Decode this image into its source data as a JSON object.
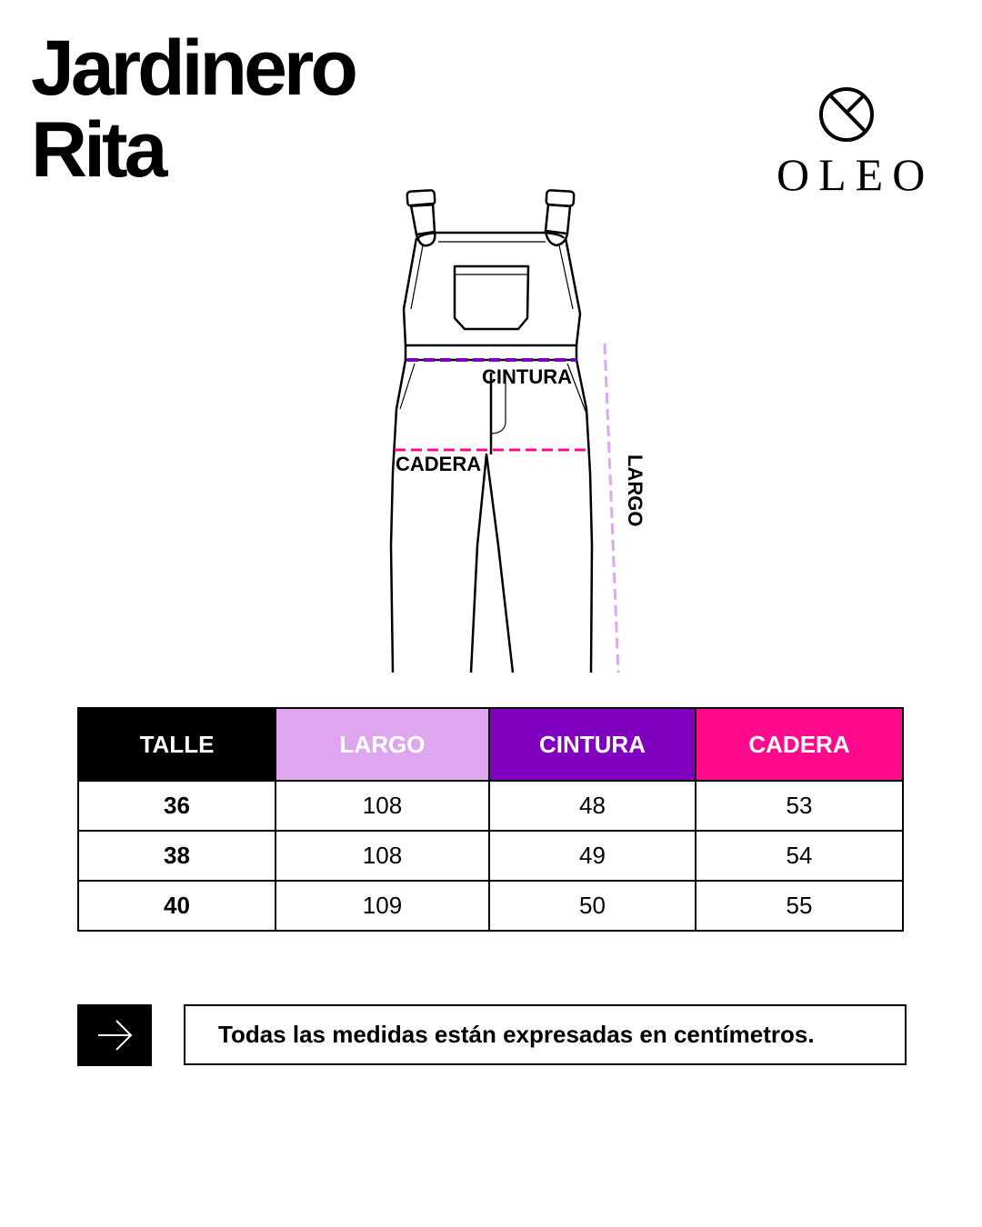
{
  "title": {
    "line1": "Jardinero",
    "line2": "Rita"
  },
  "brand": {
    "name": "OLEO",
    "icon": "circle-cross-logo-icon"
  },
  "diagram": {
    "labels": {
      "cintura": "CINTURA",
      "cadera": "CADERA",
      "largo": "LARGO"
    }
  },
  "colors": {
    "talle": "#000000",
    "largo": "#DDA6EE",
    "cintura": "#8000BF",
    "cadera": "#FF0A8C"
  },
  "table": {
    "headers": [
      "TALLE",
      "LARGO",
      "CINTURA",
      "CADERA"
    ],
    "rows": [
      [
        "36",
        "108",
        "48",
        "53"
      ],
      [
        "38",
        "108",
        "49",
        "54"
      ],
      [
        "40",
        "109",
        "50",
        "55"
      ]
    ]
  },
  "note": {
    "icon": "arrow-right-icon",
    "text": "Todas las medidas están expresadas en centímetros."
  }
}
